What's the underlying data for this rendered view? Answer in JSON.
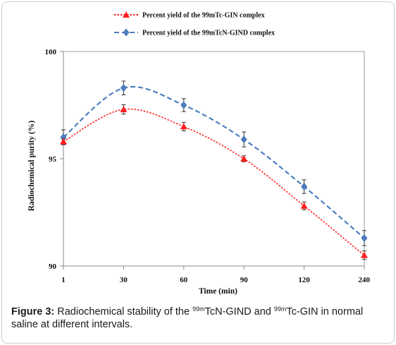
{
  "chart_data": {
    "type": "line",
    "categories": [
      "1",
      "30",
      "60",
      "90",
      "120",
      "240"
    ],
    "ylim": [
      90,
      100
    ],
    "yticks": [
      "90",
      "95",
      "100"
    ],
    "xlabel": "Time (min)",
    "ylabel": "Radiochemical purity (%)",
    "legend_position": "top",
    "grid": false,
    "series": [
      {
        "name": "Percent yield of the 99mTc-GIN complex",
        "values": [
          95.8,
          97.3,
          96.5,
          95.0,
          92.8,
          90.5
        ],
        "errors": [
          0.12,
          0.22,
          0.2,
          0.14,
          0.18,
          0.2
        ],
        "color": "#ff1e1e",
        "marker": "triangle",
        "line_style": "dotted"
      },
      {
        "name": "Percent yield of the 99mTcN-GIND complex",
        "values": [
          96.0,
          98.3,
          97.5,
          95.9,
          93.7,
          91.3
        ],
        "errors": [
          0.35,
          0.32,
          0.3,
          0.35,
          0.32,
          0.35
        ],
        "color": "#4d7fc0",
        "marker": "diamond",
        "line_style": "dashed"
      }
    ]
  },
  "caption": {
    "label": "Figure 3:",
    "text_part1": " Radiochemical stability of the ",
    "sup1": "99m",
    "text_part2": "TcN-GIND and ",
    "sup2": "99m",
    "text_part3": "Tc-GIN in normal saline at different intervals."
  }
}
